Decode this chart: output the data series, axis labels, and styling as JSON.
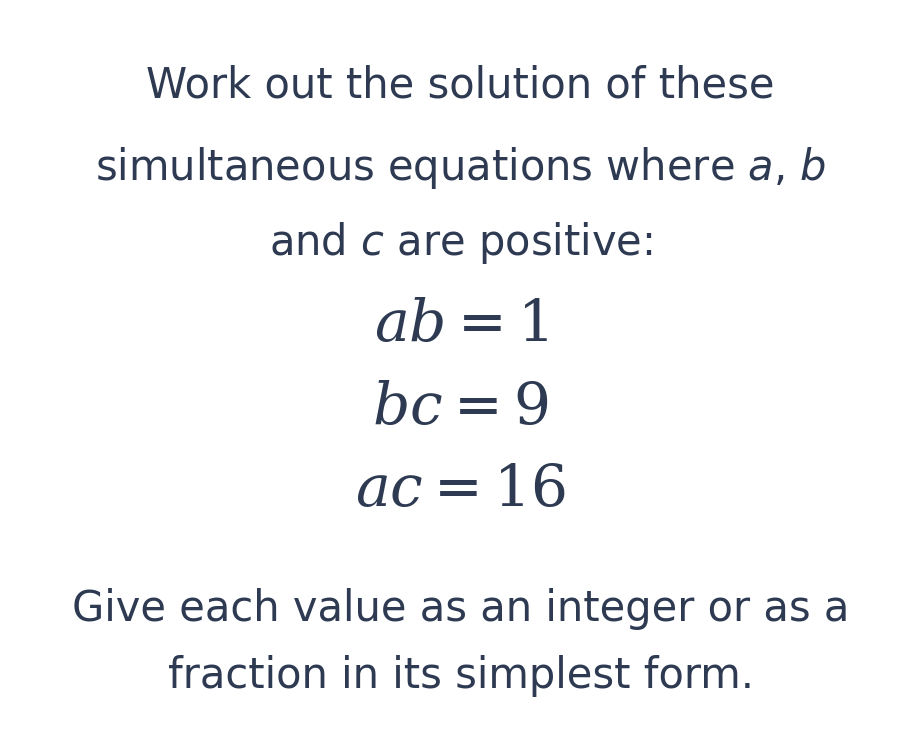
{
  "background_color": "#ffffff",
  "text_color": "#2d3a52",
  "title_lines": [
    "Work out the solution of these",
    "simultaneous equations where $a$, $b$",
    "and $c$ are positive:"
  ],
  "eq1_parts": [
    "$ab$",
    " = 1"
  ],
  "eq2_parts": [
    "$bc$",
    " = 9"
  ],
  "eq3_parts": [
    "$ac$",
    " = 16"
  ],
  "equations_display": [
    "$ab = 1$",
    "$bc = 9$",
    "$ac = 16$"
  ],
  "footer_lines": [
    "Give each value as an integer or as a",
    "fraction in its simplest form."
  ],
  "title_fontsize": 30,
  "equation_fontsize": 42,
  "footer_fontsize": 30,
  "fig_width": 9.21,
  "fig_height": 7.47,
  "dpi": 100
}
